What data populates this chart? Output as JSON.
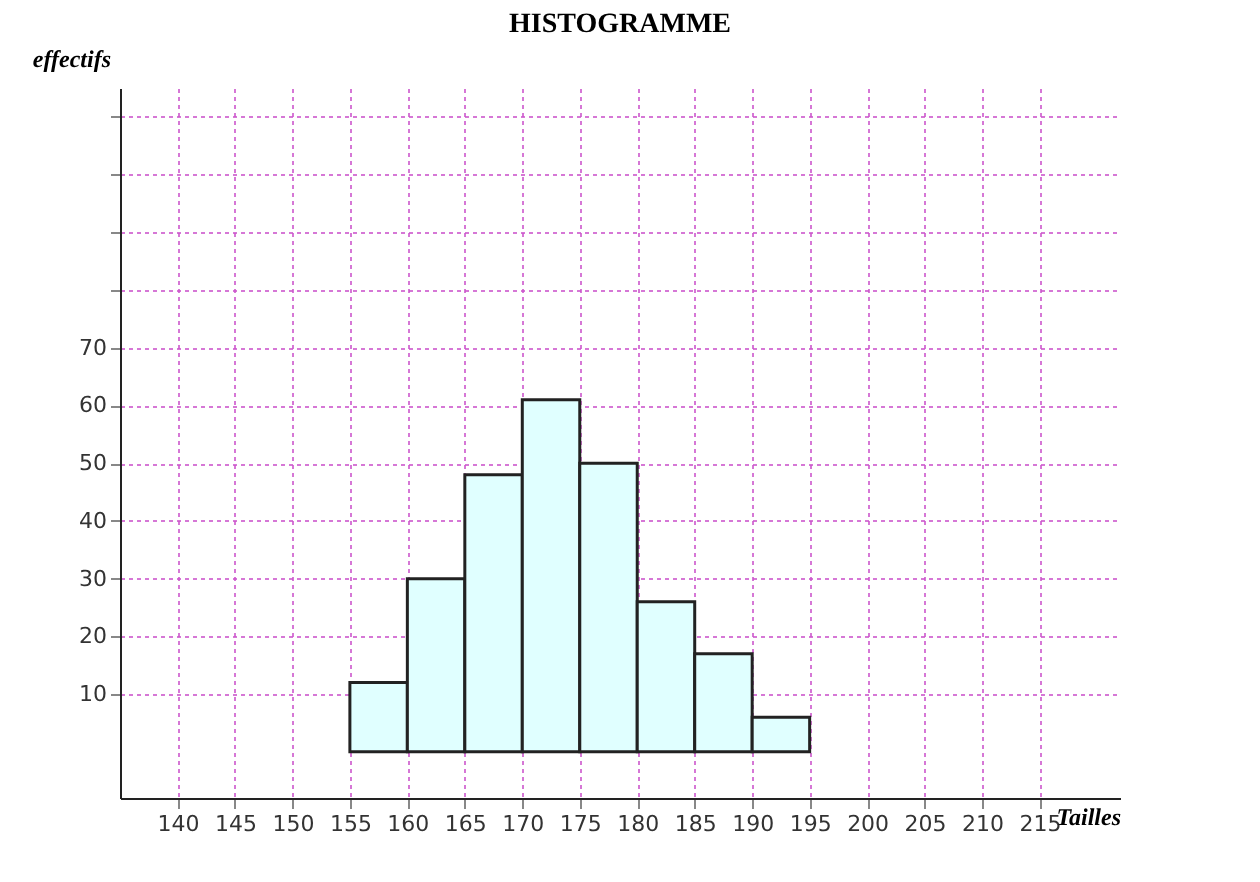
{
  "chart_data": {
    "type": "histogram",
    "title": "HISTOGRAMME",
    "xlabel": "Tailles",
    "ylabel": "effectifs",
    "bins": [
      155,
      160,
      165,
      170,
      175,
      180,
      185,
      190,
      195
    ],
    "values": [
      12,
      30,
      48,
      61,
      50,
      26,
      17,
      6
    ],
    "color": "#e0ffff",
    "xlim": [
      135,
      222
    ],
    "xticks": [
      140,
      145,
      150,
      155,
      160,
      165,
      170,
      175,
      180,
      185,
      190,
      195,
      200,
      205,
      210,
      215
    ],
    "ylim": [
      -8,
      115
    ],
    "yticks": [
      10,
      20,
      30,
      40,
      50,
      60,
      70,
      {
        "value": 80,
        "label": null
      },
      {
        "value": 90,
        "label": null
      },
      {
        "value": 100,
        "label": null
      },
      {
        "value": 110,
        "label": null
      }
    ],
    "grid": true
  }
}
